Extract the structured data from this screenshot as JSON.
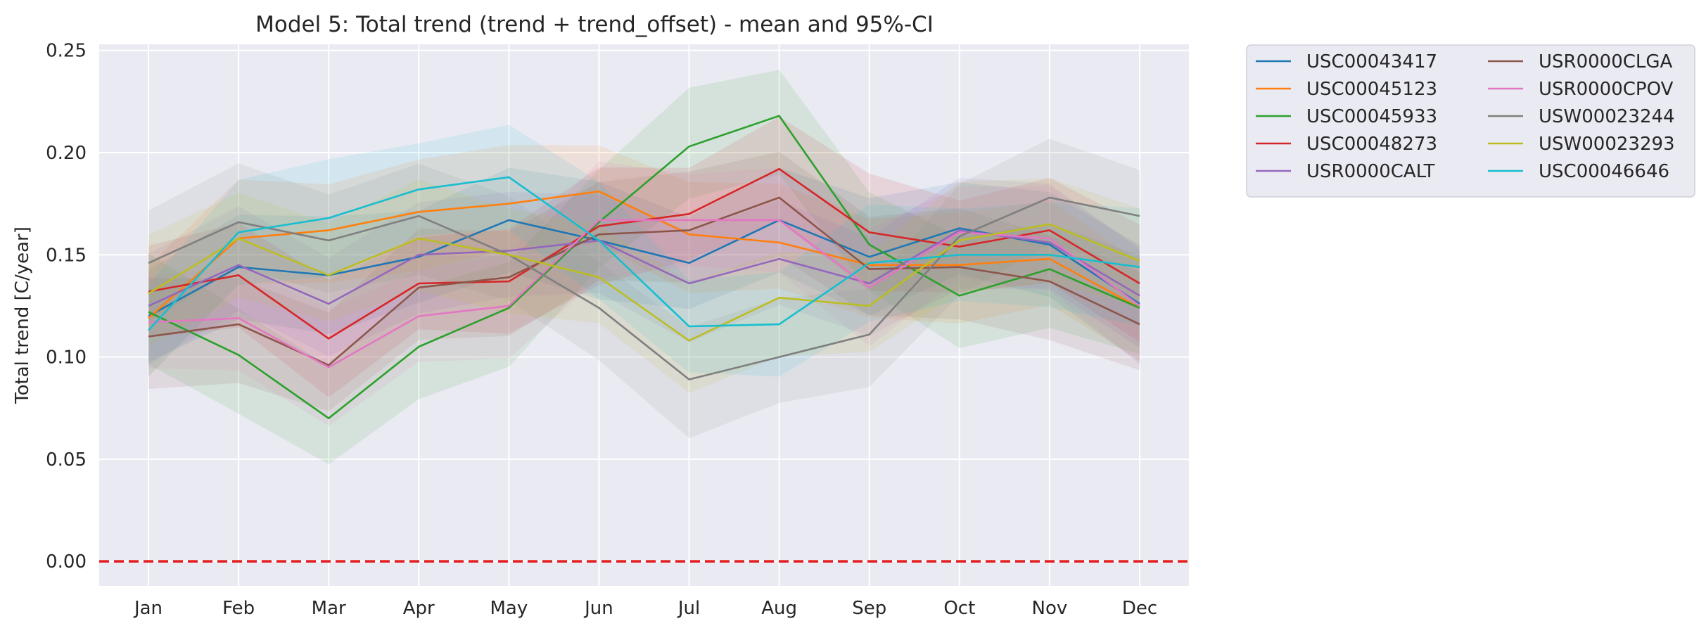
{
  "chart_data": {
    "type": "line",
    "title": "Model 5: Total trend (trend + trend_offset) - mean and 95%-CI",
    "xlabel": "",
    "ylabel": "Total trend [C/year]",
    "categories": [
      "Jan",
      "Feb",
      "Mar",
      "Apr",
      "May",
      "Jun",
      "Jul",
      "Aug",
      "Sep",
      "Oct",
      "Nov",
      "Dec"
    ],
    "ylim": [
      -0.012,
      0.253
    ],
    "yticks": [
      "0.00",
      "0.05",
      "0.10",
      "0.15",
      "0.20",
      "0.25"
    ],
    "ytick_values": [
      0.0,
      0.05,
      0.1,
      0.15,
      0.2,
      0.25
    ],
    "grid": true,
    "legend_position": "outside-right-top",
    "legend_columns": 2,
    "reference_line": {
      "y": 0.0,
      "color": "#e41a1c",
      "style": "dashed"
    },
    "ci_halfwidth_approx": 0.025,
    "series": [
      {
        "name": "USC00043417",
        "color": "#1f77b4",
        "values": [
          0.12,
          0.144,
          0.14,
          0.149,
          0.167,
          0.157,
          0.146,
          0.167,
          0.149,
          0.163,
          0.155,
          0.126
        ]
      },
      {
        "name": "USC00045123",
        "color": "#ff7f0e",
        "values": [
          0.119,
          0.158,
          0.162,
          0.171,
          0.175,
          0.181,
          0.16,
          0.156,
          0.145,
          0.145,
          0.148,
          0.124
        ]
      },
      {
        "name": "USC00045933",
        "color": "#2ca02c",
        "values": [
          0.122,
          0.101,
          0.07,
          0.105,
          0.124,
          0.166,
          0.203,
          0.218,
          0.155,
          0.13,
          0.143,
          0.124
        ]
      },
      {
        "name": "USC00048273",
        "color": "#d62728",
        "values": [
          0.132,
          0.14,
          0.109,
          0.136,
          0.137,
          0.164,
          0.17,
          0.192,
          0.161,
          0.154,
          0.162,
          0.136
        ]
      },
      {
        "name": "USR0000CALT",
        "color": "#9467bd",
        "values": [
          0.125,
          0.145,
          0.126,
          0.15,
          0.152,
          0.157,
          0.136,
          0.148,
          0.136,
          0.162,
          0.156,
          0.13
        ]
      },
      {
        "name": "USR0000CLGA",
        "color": "#8c564b",
        "values": [
          0.11,
          0.116,
          0.096,
          0.134,
          0.139,
          0.16,
          0.162,
          0.178,
          0.143,
          0.144,
          0.137,
          0.116
        ]
      },
      {
        "name": "USR0000CPOV",
        "color": "#e377c2",
        "values": [
          0.117,
          0.119,
          0.095,
          0.12,
          0.125,
          0.167,
          0.167,
          0.167,
          0.134,
          0.161,
          0.158,
          0.125
        ]
      },
      {
        "name": "USW00023244",
        "color": "#7f7f7f",
        "values": [
          0.146,
          0.166,
          0.157,
          0.169,
          0.15,
          0.124,
          0.089,
          0.1,
          0.111,
          0.159,
          0.178,
          0.169
        ]
      },
      {
        "name": "USW00023293",
        "color": "#bcbd22",
        "values": [
          0.131,
          0.158,
          0.14,
          0.158,
          0.15,
          0.139,
          0.108,
          0.129,
          0.125,
          0.157,
          0.165,
          0.147
        ]
      },
      {
        "name": "USC00046646",
        "color": "#17becf",
        "values": [
          0.113,
          0.161,
          0.168,
          0.182,
          0.188,
          0.157,
          0.115,
          0.116,
          0.146,
          0.15,
          0.15,
          0.144
        ]
      }
    ]
  },
  "theme": {
    "plot_background": "#eaeaf2",
    "grid_color": "#ffffff",
    "text_color": "#262626"
  }
}
